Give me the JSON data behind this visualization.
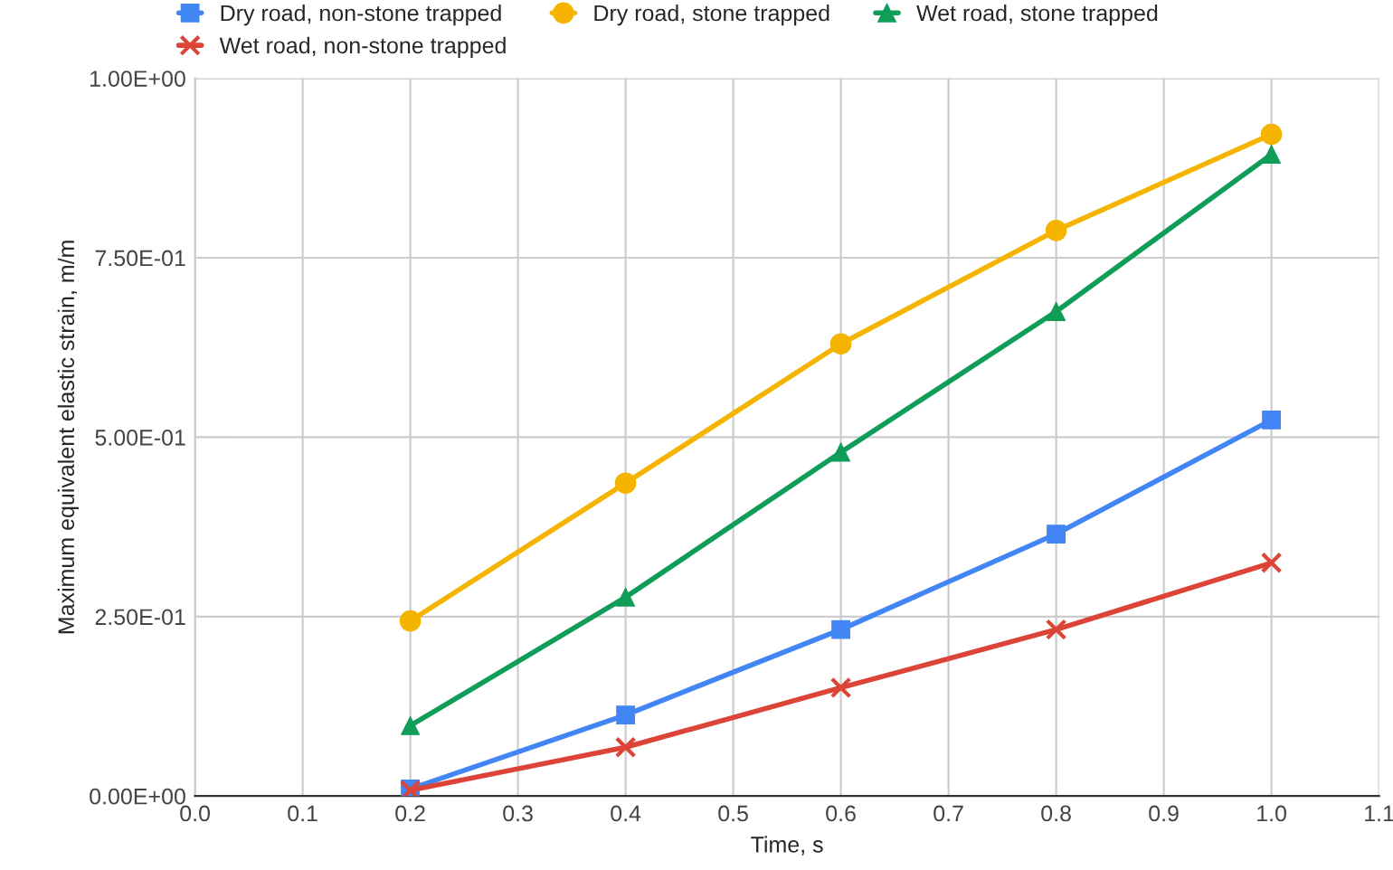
{
  "chart_data": {
    "type": "line",
    "xlabel": "Time, s",
    "ylabel": "Maximum equivalent elastic strain, m/m",
    "x": [
      0.2,
      0.4,
      0.6,
      0.8,
      1.0
    ],
    "series": [
      {
        "name": "Dry road, non-stone trapped",
        "color": "#4285f4",
        "marker": "square",
        "values": [
          0.01,
          0.113,
          0.232,
          0.365,
          0.524
        ]
      },
      {
        "name": "Wet road, non-stone trapped",
        "color": "#db4437",
        "marker": "cross",
        "values": [
          0.008,
          0.068,
          0.151,
          0.232,
          0.325
        ]
      },
      {
        "name": "Dry road, stone trapped",
        "color": "#f4b400",
        "marker": "circle",
        "values": [
          0.244,
          0.436,
          0.63,
          0.788,
          0.922
        ]
      },
      {
        "name": "Wet road, stone trapped",
        "color": "#0f9d58",
        "marker": "triangle",
        "values": [
          0.098,
          0.277,
          0.479,
          0.675,
          0.894
        ]
      }
    ],
    "xlim": [
      0,
      1.1
    ],
    "xticks": [
      {
        "value": 0,
        "label": "0.0"
      },
      0.1,
      0.2,
      0.3,
      0.4,
      0.5,
      0.6,
      0.7,
      0.8,
      0.9,
      {
        "value": 1,
        "label": "1.0"
      },
      1.1
    ],
    "ylim": [
      0,
      1
    ],
    "yticks": [
      {
        "value": 0,
        "label": "0.00E+00"
      },
      {
        "value": 0.25,
        "label": "2.50E-01"
      },
      {
        "value": 0.5,
        "label": "5.00E-01"
      },
      {
        "value": 0.75,
        "label": "7.50E-01"
      },
      {
        "value": 1,
        "label": "1.00E+00"
      }
    ],
    "grid": true,
    "legend": "top",
    "line_style": "solid"
  }
}
